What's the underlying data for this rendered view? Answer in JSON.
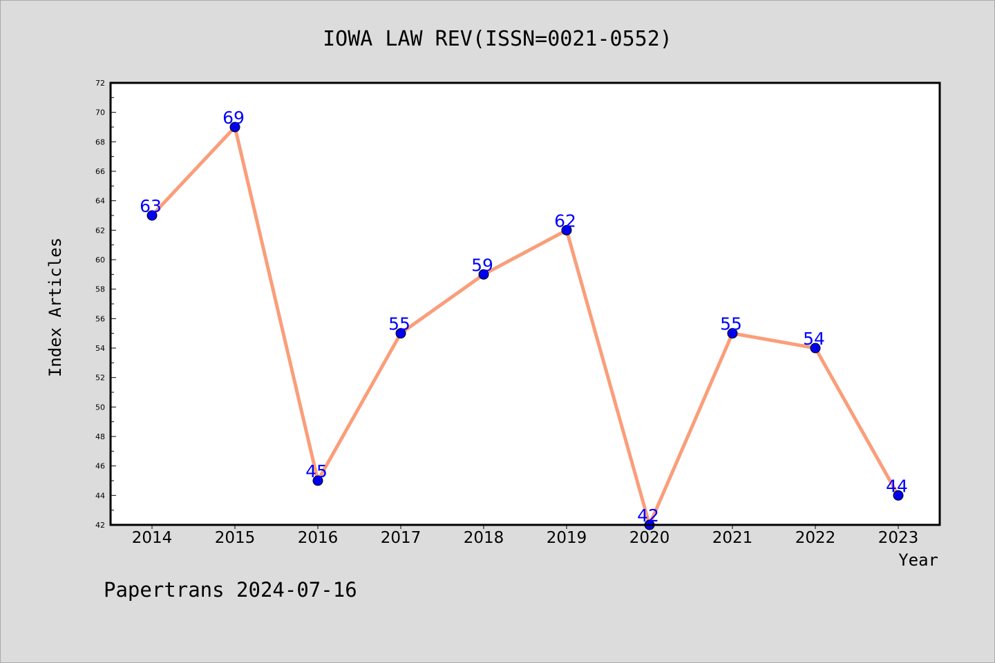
{
  "chart_data": {
    "type": "line",
    "title": "IOWA LAW REV(ISSN=0021-0552)",
    "xlabel": "Year",
    "ylabel": "Index Articles",
    "categories": [
      "2014",
      "2015",
      "2016",
      "2017",
      "2018",
      "2019",
      "2020",
      "2021",
      "2022",
      "2023"
    ],
    "series": [
      {
        "values": [
          63,
          69,
          45,
          55,
          59,
          62,
          42,
          55,
          54,
          44
        ]
      }
    ],
    "data_labels": [
      "63",
      "69",
      "45",
      "55",
      "59",
      "62",
      "42",
      "55",
      "54",
      "44"
    ],
    "ylim": [
      42,
      72
    ],
    "y_major_ticks": [
      42,
      44,
      46,
      48,
      50,
      52,
      54,
      56,
      58,
      60,
      62,
      64,
      66,
      68,
      70,
      72
    ],
    "y_tick_labels": [
      "42",
      "44",
      "46",
      "48",
      "50",
      "52",
      "54",
      "56",
      "58",
      "60",
      "62",
      "64",
      "66",
      "68",
      "70",
      "72"
    ],
    "grid": false,
    "line_color": "#fa9e7a",
    "marker_color": "#0000ee",
    "label_color": "#0000ff"
  },
  "footer": {
    "text": "Papertrans 2024-07-16"
  }
}
